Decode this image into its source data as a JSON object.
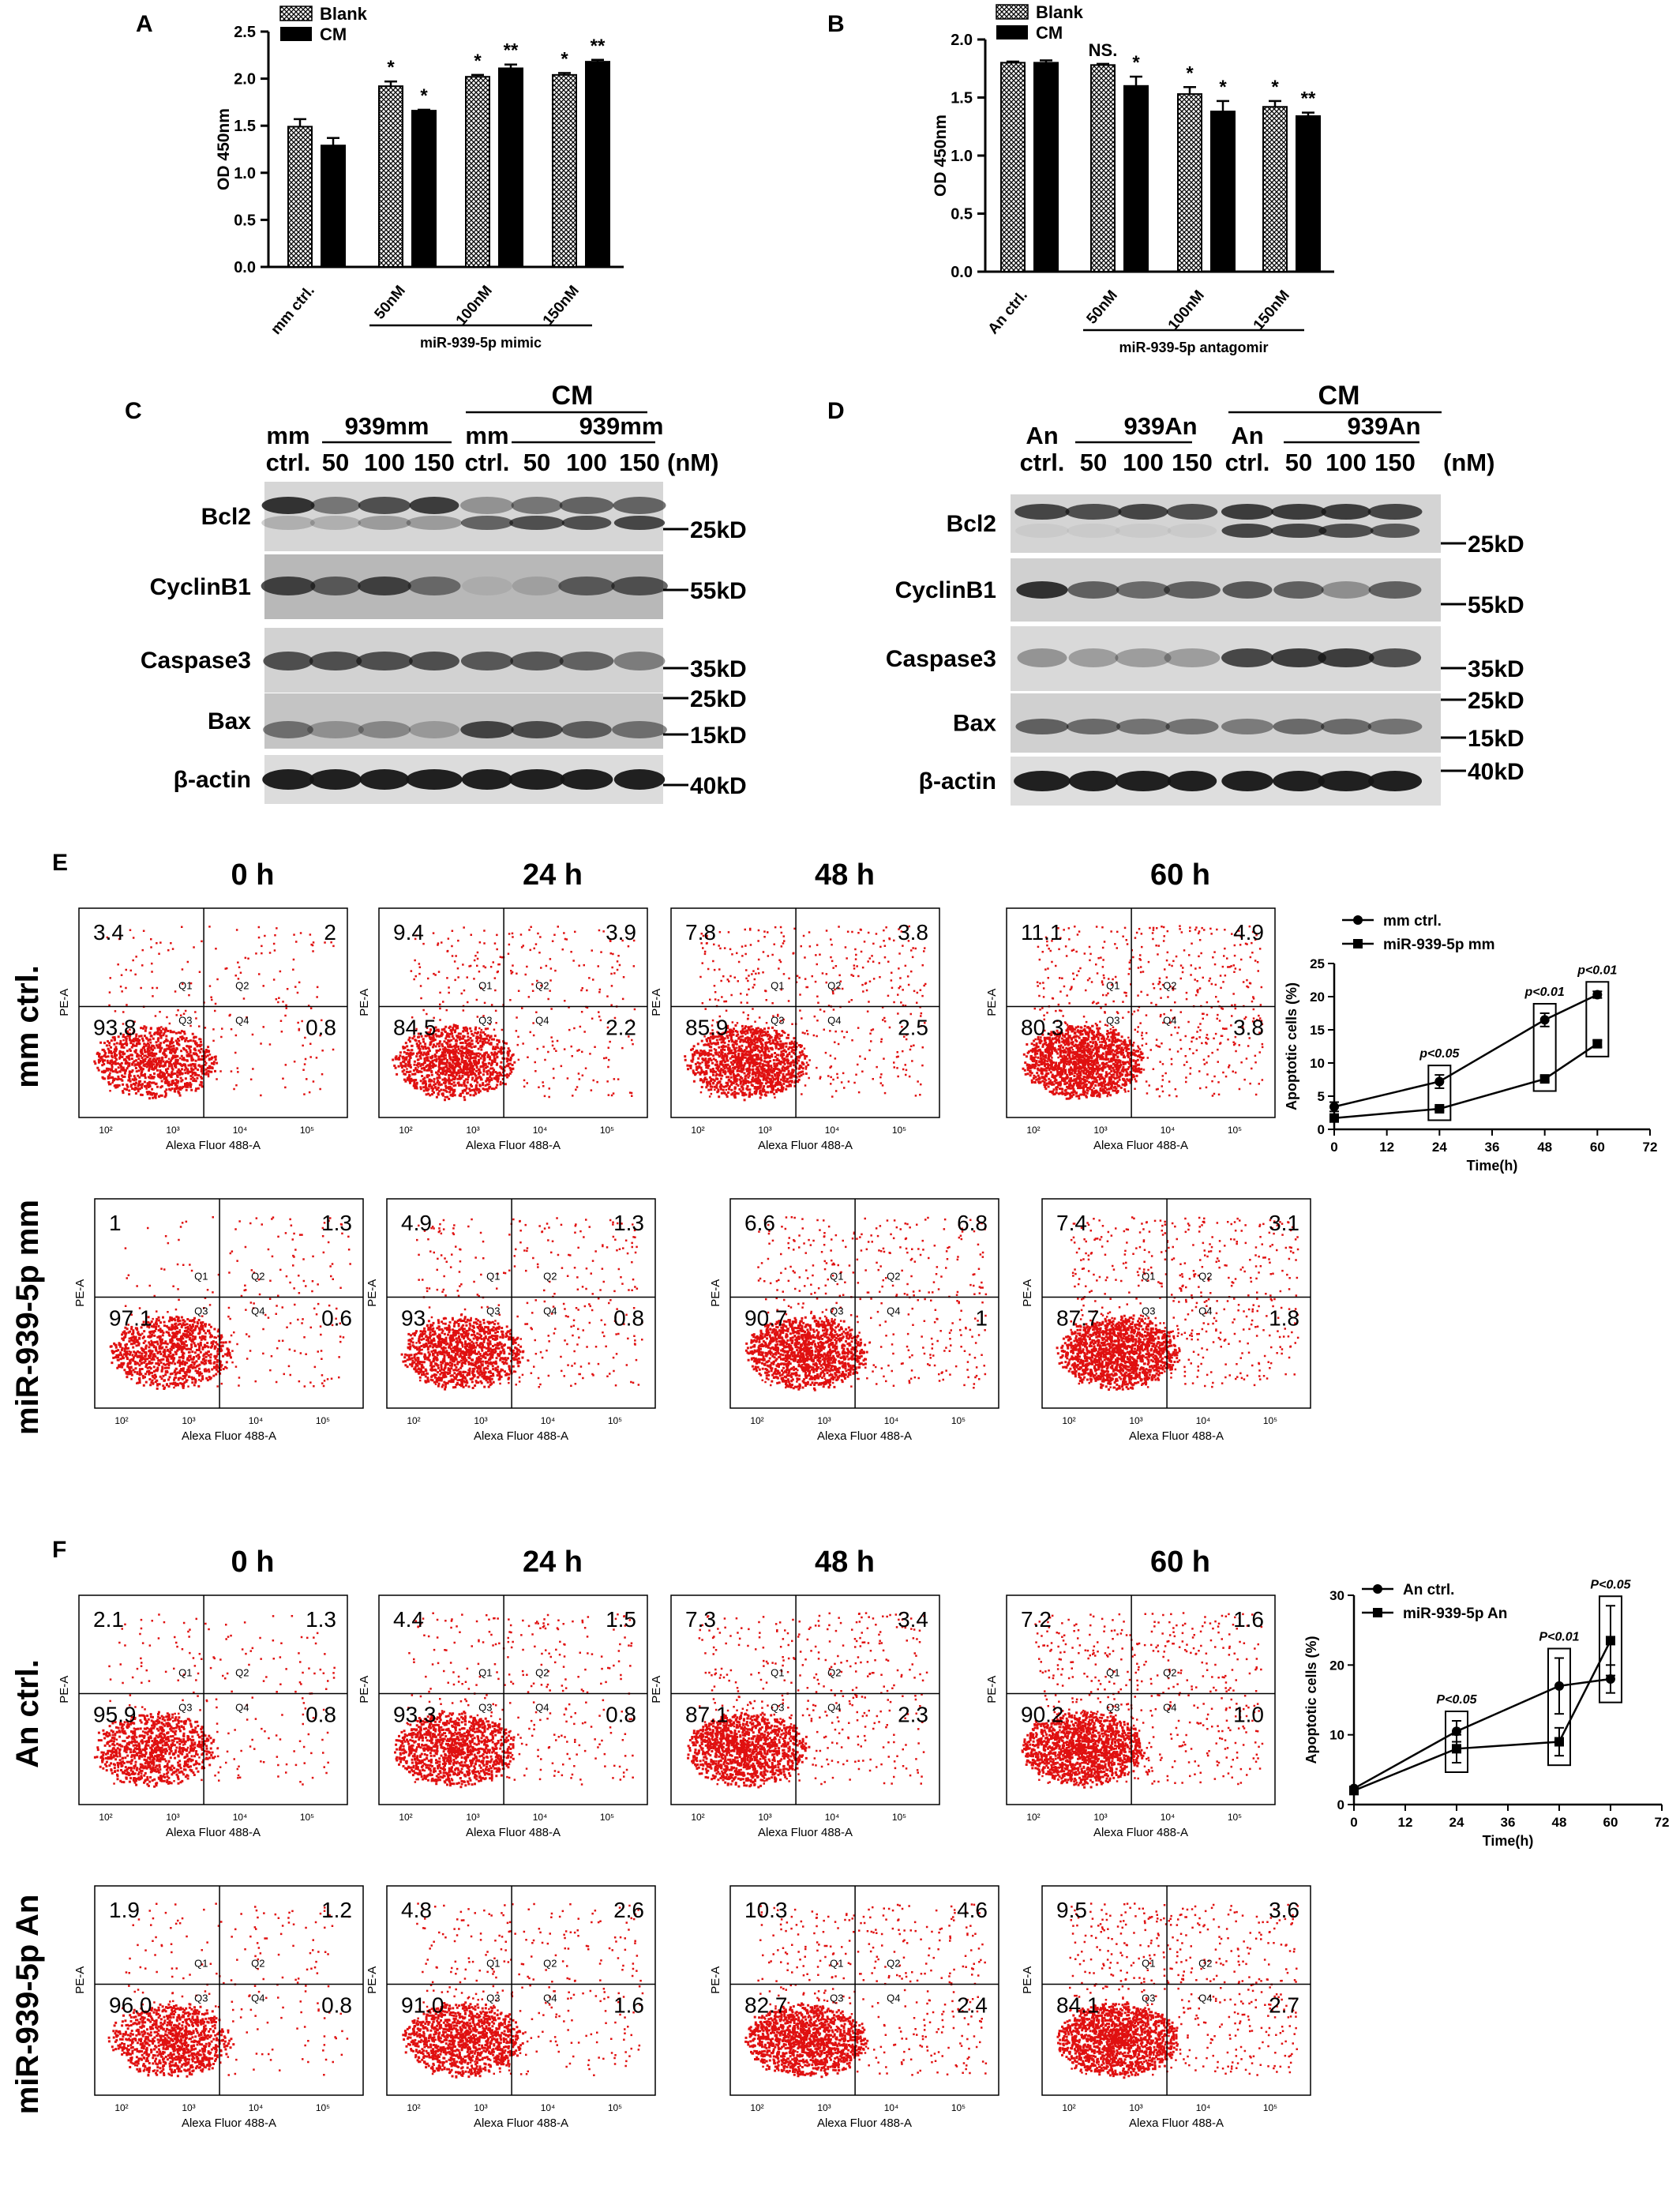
{
  "panels": {
    "A": "A",
    "B": "B",
    "C": "C",
    "D": "D",
    "E": "E",
    "F": "F"
  },
  "chart_data": [
    {
      "id": "A",
      "type": "bar",
      "ylabel": "OD 450nm",
      "ylim": [
        0,
        2.5
      ],
      "yticks": [
        "0.0",
        "0.5",
        "1.0",
        "1.5",
        "2.0",
        "2.5"
      ],
      "categories": [
        "mm ctrl.",
        "50nM",
        "100nM",
        "150nM"
      ],
      "group_label": "miR-939-5p mimic",
      "legend": [
        "Blank",
        "CM"
      ],
      "series": [
        {
          "name": "Blank",
          "values": [
            1.49,
            1.92,
            2.02,
            2.04
          ],
          "errors": [
            0.08,
            0.05,
            0.02,
            0.02
          ],
          "marks": [
            "",
            "*",
            "*",
            "*"
          ]
        },
        {
          "name": "CM",
          "values": [
            1.29,
            1.66,
            2.11,
            2.18
          ],
          "errors": [
            0.08,
            0.01,
            0.04,
            0.02
          ],
          "marks": [
            "",
            "*",
            "**",
            "**"
          ]
        }
      ]
    },
    {
      "id": "B",
      "type": "bar",
      "ylabel": "OD 450nm",
      "ylim": [
        0,
        2.0
      ],
      "yticks": [
        "0.0",
        "0.5",
        "1.0",
        "1.5",
        "2.0"
      ],
      "categories": [
        "An ctrl.",
        "50nM",
        "100nM",
        "150nM"
      ],
      "group_label": "miR-939-5p antagomir",
      "legend": [
        "Blank",
        "CM"
      ],
      "series": [
        {
          "name": "Blank",
          "values": [
            1.8,
            1.78,
            1.53,
            1.42
          ],
          "errors": [
            0.01,
            0.01,
            0.06,
            0.05
          ],
          "marks": [
            "",
            "NS.",
            "*",
            "*"
          ]
        },
        {
          "name": "CM",
          "values": [
            1.8,
            1.6,
            1.38,
            1.34
          ],
          "errors": [
            0.02,
            0.08,
            0.09,
            0.03
          ],
          "marks": [
            "",
            "*",
            "*",
            "**"
          ]
        }
      ]
    },
    {
      "id": "E-line",
      "type": "line",
      "xlabel": "Time(h)",
      "ylabel": "Apoptotic cells (%)",
      "xlim": [
        0,
        72
      ],
      "ylim": [
        0,
        25
      ],
      "xticks": [
        "0",
        "12",
        "24",
        "36",
        "48",
        "60",
        "72"
      ],
      "yticks": [
        "0",
        "5",
        "10",
        "15",
        "20",
        "25"
      ],
      "x": [
        0,
        24,
        48,
        60
      ],
      "series": [
        {
          "name": "mm ctrl.",
          "values": [
            3.4,
            7.2,
            16.5,
            20.3
          ],
          "errors": [
            0.7,
            1.0,
            1.0,
            0.5
          ]
        },
        {
          "name": "miR-939-5p mm",
          "values": [
            1.7,
            3.1,
            7.6,
            12.9
          ],
          "errors": [
            0.3,
            0.3,
            0.4,
            0.5
          ]
        }
      ],
      "pvalues": [
        "p<0.05",
        "p<0.01",
        "p<0.01"
      ]
    },
    {
      "id": "F-line",
      "type": "line",
      "xlabel": "Time(h)",
      "ylabel": "Apoptotic cells (%)",
      "xlim": [
        0,
        72
      ],
      "ylim": [
        0,
        30
      ],
      "xticks": [
        "0",
        "12",
        "24",
        "36",
        "48",
        "60",
        "72"
      ],
      "yticks": [
        "0",
        "10",
        "20",
        "30"
      ],
      "x": [
        0,
        24,
        48,
        60
      ],
      "series": [
        {
          "name": "An ctrl.",
          "values": [
            2.3,
            10.5,
            17.0,
            18.0
          ],
          "errors": [
            0.3,
            1.5,
            4.0,
            2.0
          ]
        },
        {
          "name": "miR-939-5p An",
          "values": [
            2.0,
            8.0,
            9.0,
            23.5
          ],
          "errors": [
            0.3,
            2.0,
            2.0,
            5.0
          ]
        }
      ],
      "pvalues": [
        "P<0.05",
        "P<0.01",
        "P<0.05"
      ]
    }
  ],
  "blotC": {
    "top_label": "CM",
    "group_labels": [
      "939mm",
      "939mm"
    ],
    "lanes": [
      "mm\nctrl.",
      "50",
      "100",
      "150",
      "mm\nctrl.",
      "50",
      "100",
      "150"
    ],
    "unit": "(nM)",
    "rows": [
      "Bcl2",
      "CyclinB1",
      "Caspase3",
      "Bax",
      "β-actin"
    ],
    "markers": [
      "25kD",
      "55kD",
      "35kD",
      "25kD",
      "15kD",
      "40kD"
    ]
  },
  "blotD": {
    "top_label": "CM",
    "group_labels": [
      "939An",
      "939An"
    ],
    "lanes": [
      "An\nctrl.",
      "50",
      "100",
      "150",
      "An\nctrl.",
      "50",
      "100",
      "150"
    ],
    "unit": "(nM)",
    "rows": [
      "Bcl2",
      "CyclinB1",
      "Caspase3",
      "Bax",
      "β-actin"
    ],
    "markers": [
      "25kD",
      "55kD",
      "35kD",
      "25kD",
      "15kD",
      "40kD"
    ]
  },
  "flow": {
    "times": [
      "0 h",
      "24 h",
      "48 h",
      "60 h"
    ],
    "xaxis": "Alexa Fluor 488-A",
    "yaxis": "PE-A",
    "quadrants": [
      "Q1",
      "Q2",
      "Q3",
      "Q4"
    ],
    "E": {
      "rows": [
        {
          "label": "mm ctrl.",
          "values": [
            [
              "3.4",
              "2",
              "93.8",
              "0.8"
            ],
            [
              "9.4",
              "3.9",
              "84.5",
              "2.2"
            ],
            [
              "7.8",
              "3.8",
              "85.9",
              "2.5"
            ],
            [
              "11.1",
              "4.9",
              "80.3",
              "3.8"
            ]
          ]
        },
        {
          "label": "miR-939-5p mm",
          "values": [
            [
              "1",
              "1.3",
              "97.1",
              "0.6"
            ],
            [
              "4.9",
              "1.3",
              "93",
              "0.8"
            ],
            [
              "6.6",
              "6.8",
              "90.7",
              "1"
            ],
            [
              "7.4",
              "3.1",
              "87.7",
              "1.8"
            ]
          ]
        }
      ]
    },
    "F": {
      "rows": [
        {
          "label": "An ctrl.",
          "values": [
            [
              "2.1",
              "1.3",
              "95.9",
              "0.8"
            ],
            [
              "4.4",
              "1.5",
              "93.3",
              "0.8"
            ],
            [
              "7.3",
              "3.4",
              "87.1",
              "2.3"
            ],
            [
              "7.2",
              "1.6",
              "90.2",
              "1.0"
            ]
          ]
        },
        {
          "label": "miR-939-5p An",
          "values": [
            [
              "1.9",
              "1.2",
              "96.0",
              "0.8"
            ],
            [
              "4.8",
              "2.6",
              "91.0",
              "1.6"
            ],
            [
              "10.3",
              "4.6",
              "82.7",
              "2.4"
            ],
            [
              "9.5",
              "3.6",
              "84.1",
              "2.7"
            ]
          ]
        }
      ]
    }
  }
}
